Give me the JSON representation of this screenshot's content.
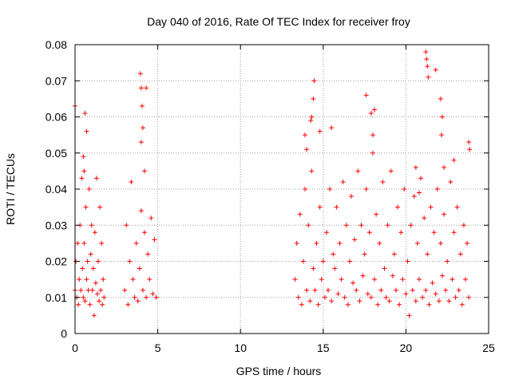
{
  "chart_data": {
    "type": "scatter",
    "title": "Day 040 of 2016, Rate Of TEC Index for receiver froy",
    "xlabel": "GPS time / hours",
    "ylabel": "ROTI / TECUs",
    "xlim": [
      0,
      25
    ],
    "ylim": [
      0,
      0.08
    ],
    "grid": true,
    "marker": "+",
    "x_ticks": [
      0,
      5,
      10,
      15,
      20,
      25
    ],
    "x_tick_labels": [
      "0",
      "5",
      "10",
      "15",
      "20",
      "25"
    ],
    "y_ticks": [
      0,
      0.01,
      0.02,
      0.03,
      0.04,
      0.05,
      0.06,
      0.07,
      0.08
    ],
    "y_tick_labels": [
      "0",
      "0.01",
      "0.02",
      "0.03",
      "0.04",
      "0.05",
      "0.06",
      "0.07",
      "0.08"
    ],
    "colors": {
      "points": "#ff0000",
      "grid": "#a0a0a0",
      "axes": "#000000"
    },
    "series": [
      {
        "name": "ROTI",
        "x": [
          0.0,
          0.05,
          0.1,
          0.15,
          0.2,
          0.25,
          0.3,
          0.35,
          0.4,
          0.45,
          0.5,
          0.55,
          0.6,
          0.65,
          0.7,
          0.75,
          0.8,
          0.85,
          0.9,
          0.95,
          1.0,
          1.05,
          1.1,
          1.15,
          1.2,
          1.25,
          1.3,
          1.35,
          1.4,
          1.45,
          1.5,
          1.55,
          1.6,
          1.65,
          1.7,
          1.75,
          0.0,
          0.6,
          0.7,
          0.5,
          0.55,
          3.0,
          3.1,
          3.2,
          3.3,
          3.4,
          3.5,
          3.6,
          3.7,
          3.8,
          3.9,
          4.0,
          4.1,
          4.2,
          4.3,
          4.4,
          4.5,
          4.6,
          4.7,
          4.8,
          4.9,
          3.95,
          4.0,
          4.05,
          4.3,
          4.0,
          4.1,
          4.2,
          13.3,
          13.4,
          13.5,
          13.6,
          13.7,
          13.8,
          13.9,
          14.0,
          14.1,
          14.2,
          14.3,
          14.4,
          14.5,
          14.6,
          14.7,
          14.8,
          14.9,
          15.0,
          15.1,
          15.2,
          15.3,
          15.4,
          15.5,
          15.6,
          15.7,
          15.8,
          15.9,
          16.0,
          16.1,
          16.2,
          16.3,
          16.4,
          16.5,
          16.6,
          16.7,
          16.8,
          16.9,
          17.0,
          17.1,
          17.2,
          17.3,
          17.4,
          17.5,
          17.6,
          17.7,
          17.8,
          17.9,
          18.0,
          18.1,
          18.2,
          18.3,
          18.4,
          18.5,
          18.6,
          18.7,
          18.8,
          18.9,
          19.0,
          19.1,
          19.2,
          19.3,
          19.4,
          19.5,
          19.6,
          19.7,
          19.8,
          19.9,
          20.0,
          20.1,
          20.2,
          20.3,
          20.4,
          20.5,
          20.6,
          20.7,
          20.8,
          20.9,
          21.0,
          21.1,
          21.2,
          21.3,
          21.4,
          21.5,
          21.6,
          21.7,
          21.8,
          21.9,
          22.0,
          22.1,
          22.2,
          22.3,
          22.4,
          22.5,
          22.6,
          22.7,
          22.8,
          22.9,
          23.0,
          23.1,
          23.2,
          23.3,
          23.4,
          23.5,
          23.6,
          23.7,
          23.8,
          14.3,
          14.4,
          14.45,
          14.25,
          13.9,
          14.0,
          14.8,
          15.5,
          17.6,
          17.9,
          18.1,
          18.0,
          21.2,
          21.25,
          21.3,
          21.35,
          21.8,
          22.1,
          22.2,
          22.15,
          22.3,
          23.8,
          23.85,
          20.6,
          20.8,
          22.9
        ],
        "y": [
          0.012,
          0.02,
          0.01,
          0.025,
          0.008,
          0.015,
          0.03,
          0.012,
          0.043,
          0.018,
          0.01,
          0.025,
          0.009,
          0.035,
          0.015,
          0.02,
          0.012,
          0.04,
          0.008,
          0.022,
          0.03,
          0.012,
          0.018,
          0.005,
          0.028,
          0.014,
          0.043,
          0.011,
          0.02,
          0.009,
          0.035,
          0.012,
          0.025,
          0.008,
          0.015,
          0.01,
          0.063,
          0.061,
          0.056,
          0.049,
          0.045,
          0.012,
          0.03,
          0.008,
          0.02,
          0.042,
          0.015,
          0.01,
          0.025,
          0.009,
          0.018,
          0.034,
          0.012,
          0.028,
          0.01,
          0.022,
          0.015,
          0.032,
          0.011,
          0.026,
          0.01,
          0.072,
          0.068,
          0.063,
          0.068,
          0.053,
          0.057,
          0.045,
          0.015,
          0.025,
          0.01,
          0.033,
          0.008,
          0.02,
          0.04,
          0.012,
          0.03,
          0.009,
          0.045,
          0.018,
          0.012,
          0.025,
          0.008,
          0.035,
          0.015,
          0.02,
          0.01,
          0.028,
          0.012,
          0.04,
          0.009,
          0.022,
          0.018,
          0.035,
          0.011,
          0.025,
          0.015,
          0.042,
          0.01,
          0.03,
          0.008,
          0.02,
          0.038,
          0.014,
          0.026,
          0.012,
          0.045,
          0.009,
          0.03,
          0.016,
          0.022,
          0.04,
          0.011,
          0.028,
          0.01,
          0.05,
          0.015,
          0.033,
          0.008,
          0.025,
          0.012,
          0.042,
          0.018,
          0.01,
          0.03,
          0.009,
          0.045,
          0.016,
          0.022,
          0.012,
          0.035,
          0.008,
          0.028,
          0.015,
          0.04,
          0.011,
          0.02,
          0.005,
          0.03,
          0.012,
          0.038,
          0.009,
          0.025,
          0.015,
          0.043,
          0.01,
          0.032,
          0.012,
          0.022,
          0.008,
          0.035,
          0.014,
          0.028,
          0.011,
          0.04,
          0.009,
          0.025,
          0.016,
          0.033,
          0.012,
          0.02,
          0.009,
          0.042,
          0.015,
          0.028,
          0.01,
          0.035,
          0.012,
          0.022,
          0.008,
          0.03,
          0.015,
          0.025,
          0.01,
          0.06,
          0.065,
          0.07,
          0.059,
          0.055,
          0.051,
          0.056,
          0.057,
          0.066,
          0.061,
          0.062,
          0.055,
          0.078,
          0.076,
          0.074,
          0.071,
          0.073,
          0.065,
          0.06,
          0.055,
          0.046,
          0.053,
          0.051,
          0.046,
          0.039,
          0.048
        ]
      }
    ]
  }
}
